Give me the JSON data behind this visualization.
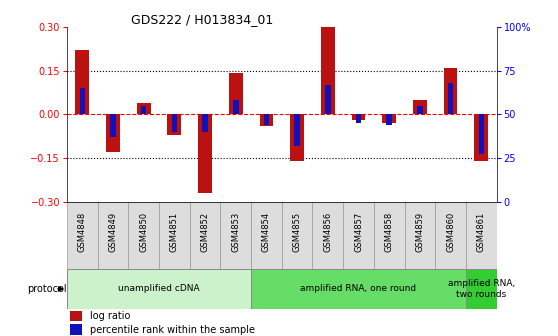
{
  "title": "GDS222 / H013834_01",
  "samples": [
    "GSM4848",
    "GSM4849",
    "GSM4850",
    "GSM4851",
    "GSM4852",
    "GSM4853",
    "GSM4854",
    "GSM4855",
    "GSM4856",
    "GSM4857",
    "GSM4858",
    "GSM4859",
    "GSM4860",
    "GSM4861"
  ],
  "log_ratio": [
    0.22,
    -0.13,
    0.04,
    -0.07,
    -0.27,
    0.14,
    -0.04,
    -0.16,
    0.3,
    -0.02,
    -0.03,
    0.05,
    0.16,
    -0.16
  ],
  "percentile": [
    65,
    37,
    55,
    40,
    40,
    58,
    44,
    32,
    67,
    45,
    44,
    55,
    68,
    27
  ],
  "bar_color": "#bb1111",
  "pct_color": "#1111bb",
  "ylim": [
    -0.3,
    0.3
  ],
  "pct_ylim": [
    0,
    100
  ],
  "yticks_left": [
    -0.3,
    -0.15,
    0.0,
    0.15,
    0.3
  ],
  "yticks_right": [
    0,
    25,
    50,
    75,
    100
  ],
  "hlines_dotted": [
    -0.15,
    0.15
  ],
  "hline_zero": 0.0,
  "protocols": [
    {
      "label": "unamplified cDNA",
      "start": 0,
      "end": 6,
      "color": "#ccf2cc"
    },
    {
      "label": "amplified RNA, one round",
      "start": 6,
      "end": 13,
      "color": "#66dd66"
    },
    {
      "label": "amplified RNA,\ntwo rounds",
      "start": 13,
      "end": 14,
      "color": "#33cc33"
    }
  ],
  "protocol_label": "protocol",
  "legend_items": [
    {
      "label": "log ratio",
      "color": "#bb1111"
    },
    {
      "label": "percentile rank within the sample",
      "color": "#1111bb"
    }
  ],
  "bar_width": 0.45,
  "pct_bar_width": 0.18
}
